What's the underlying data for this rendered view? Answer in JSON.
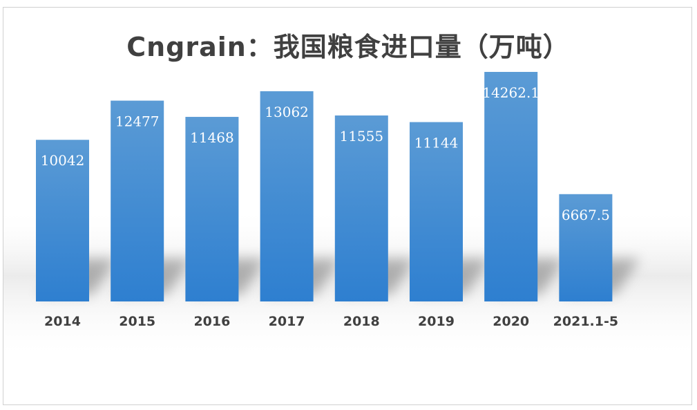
{
  "chart_data": {
    "type": "bar",
    "title": "Cngrain：我国粮食进口量（万吨）",
    "xlabel": "",
    "ylabel": "",
    "categories": [
      "2014",
      "2015",
      "2016",
      "2017",
      "2018",
      "2019",
      "2020",
      "2021.1-5"
    ],
    "values": [
      10042,
      12477,
      11468,
      13062,
      11555,
      11144,
      14262.1,
      6667.5
    ],
    "data_labels": [
      "10042",
      "12477",
      "11468",
      "13062",
      "11555",
      "11144",
      "14262.1",
      "6667.5"
    ],
    "ylim": [
      0,
      14262.1
    ],
    "grid": false,
    "legend": "none",
    "colors": {
      "bar_top": "#5b9bd5",
      "bar_bottom": "#2e7fd0",
      "label": "#ffffff",
      "tick": "#404040",
      "title": "#404040"
    }
  }
}
